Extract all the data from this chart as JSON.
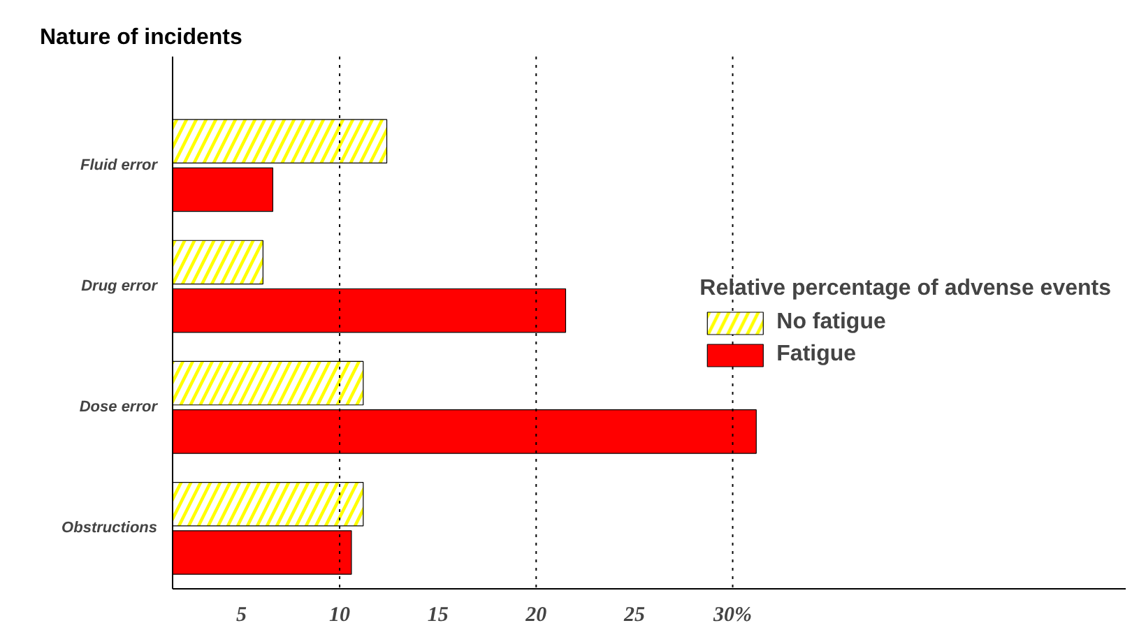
{
  "chart_data": {
    "type": "bar",
    "orientation": "horizontal",
    "title": "Nature of incidents",
    "legend_title": "Relative percentage of advense events",
    "categories": [
      "Fluid error",
      "Drug error",
      "Dose error",
      "Obstructions"
    ],
    "series": [
      {
        "name": "No fatigue",
        "color": "#ffff00",
        "values": [
          12.4,
          6.1,
          11.2,
          11.2
        ]
      },
      {
        "name": "Fatigue",
        "color": "#ff0000",
        "values": [
          6.6,
          21.5,
          31.2,
          10.6
        ]
      }
    ],
    "xlim": [
      1.5,
      50
    ],
    "xticks": [
      5,
      10,
      15,
      20,
      25,
      {
        "value": 30,
        "label": "30%"
      }
    ],
    "ref_lines": [
      {
        "axis": "x",
        "value": 10,
        "line_style": "dotted",
        "color": "#000000"
      },
      {
        "axis": "x",
        "value": 20,
        "line_style": "dotted",
        "color": "#000000"
      },
      {
        "axis": "x",
        "value": 30,
        "line_style": "dotted",
        "color": "#000000"
      }
    ],
    "grid": false,
    "legend": "right"
  }
}
